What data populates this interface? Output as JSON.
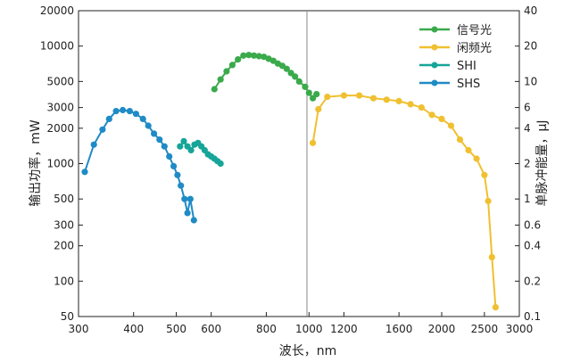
{
  "chart_data": {
    "type": "line",
    "xlabel": "波长，nm",
    "ylabel_left": "输出功率，mW",
    "ylabel_right": "单脉冲能量，μJ",
    "x_scale": "log",
    "y_scale": "log",
    "xlim": [
      300,
      3000
    ],
    "ylim_left": [
      50,
      20000
    ],
    "ylim_right": [
      0.1,
      40
    ],
    "grid": "vertical line at 1000",
    "legend_position": "top-right",
    "x_ticks": [
      "300",
      "400",
      "500",
      "600",
      "800",
      "1000",
      "1200",
      "1600",
      "2000",
      "2500",
      "3000"
    ],
    "y_ticks_left": [
      "50",
      "100",
      "200",
      "300",
      "500",
      "1000",
      "2000",
      "3000",
      "5000",
      "10000",
      "20000"
    ],
    "y_ticks_right": [
      "0.1",
      "0.2",
      "0.4",
      "0.6",
      "1",
      "2",
      "4",
      "6",
      "10",
      "20",
      "40"
    ],
    "series": [
      {
        "name": "信号光",
        "color": "#3aaa4b",
        "points": [
          [
            610,
            4300
          ],
          [
            630,
            5200
          ],
          [
            650,
            6100
          ],
          [
            670,
            6900
          ],
          [
            690,
            7700
          ],
          [
            710,
            8300
          ],
          [
            730,
            8400
          ],
          [
            750,
            8300
          ],
          [
            770,
            8200
          ],
          [
            790,
            8100
          ],
          [
            810,
            7800
          ],
          [
            830,
            7500
          ],
          [
            850,
            7100
          ],
          [
            870,
            6800
          ],
          [
            890,
            6400
          ],
          [
            910,
            5900
          ],
          [
            930,
            5500
          ],
          [
            950,
            5000
          ],
          [
            980,
            4500
          ],
          [
            1000,
            4000
          ],
          [
            1020,
            3600
          ],
          [
            1040,
            3900
          ]
        ]
      },
      {
        "name": "闲频光",
        "color": "#f0c030",
        "points": [
          [
            1020,
            1500
          ],
          [
            1050,
            2900
          ],
          [
            1100,
            3700
          ],
          [
            1200,
            3800
          ],
          [
            1300,
            3800
          ],
          [
            1400,
            3600
          ],
          [
            1500,
            3500
          ],
          [
            1600,
            3400
          ],
          [
            1700,
            3200
          ],
          [
            1800,
            3000
          ],
          [
            1900,
            2600
          ],
          [
            2000,
            2400
          ],
          [
            2100,
            2100
          ],
          [
            2200,
            1600
          ],
          [
            2300,
            1300
          ],
          [
            2400,
            1100
          ],
          [
            2500,
            800
          ],
          [
            2550,
            480
          ],
          [
            2600,
            160
          ],
          [
            2650,
            60
          ]
        ]
      },
      {
        "name": "SHI",
        "color": "#16a598",
        "points": [
          [
            510,
            1400
          ],
          [
            520,
            1550
          ],
          [
            530,
            1400
          ],
          [
            540,
            1300
          ],
          [
            550,
            1450
          ],
          [
            560,
            1500
          ],
          [
            570,
            1400
          ],
          [
            580,
            1300
          ],
          [
            590,
            1200
          ],
          [
            600,
            1150
          ],
          [
            610,
            1100
          ],
          [
            620,
            1050
          ],
          [
            630,
            1000
          ]
        ]
      },
      {
        "name": "SHS",
        "color": "#1f8bc6",
        "points": [
          [
            310,
            850
          ],
          [
            325,
            1450
          ],
          [
            340,
            1950
          ],
          [
            352,
            2400
          ],
          [
            365,
            2800
          ],
          [
            378,
            2850
          ],
          [
            392,
            2800
          ],
          [
            405,
            2650
          ],
          [
            420,
            2400
          ],
          [
            432,
            2100
          ],
          [
            445,
            1800
          ],
          [
            458,
            1600
          ],
          [
            470,
            1400
          ],
          [
            482,
            1150
          ],
          [
            493,
            950
          ],
          [
            503,
            800
          ],
          [
            512,
            650
          ],
          [
            522,
            500
          ],
          [
            530,
            380
          ],
          [
            538,
            500
          ],
          [
            548,
            330
          ]
        ]
      }
    ]
  }
}
